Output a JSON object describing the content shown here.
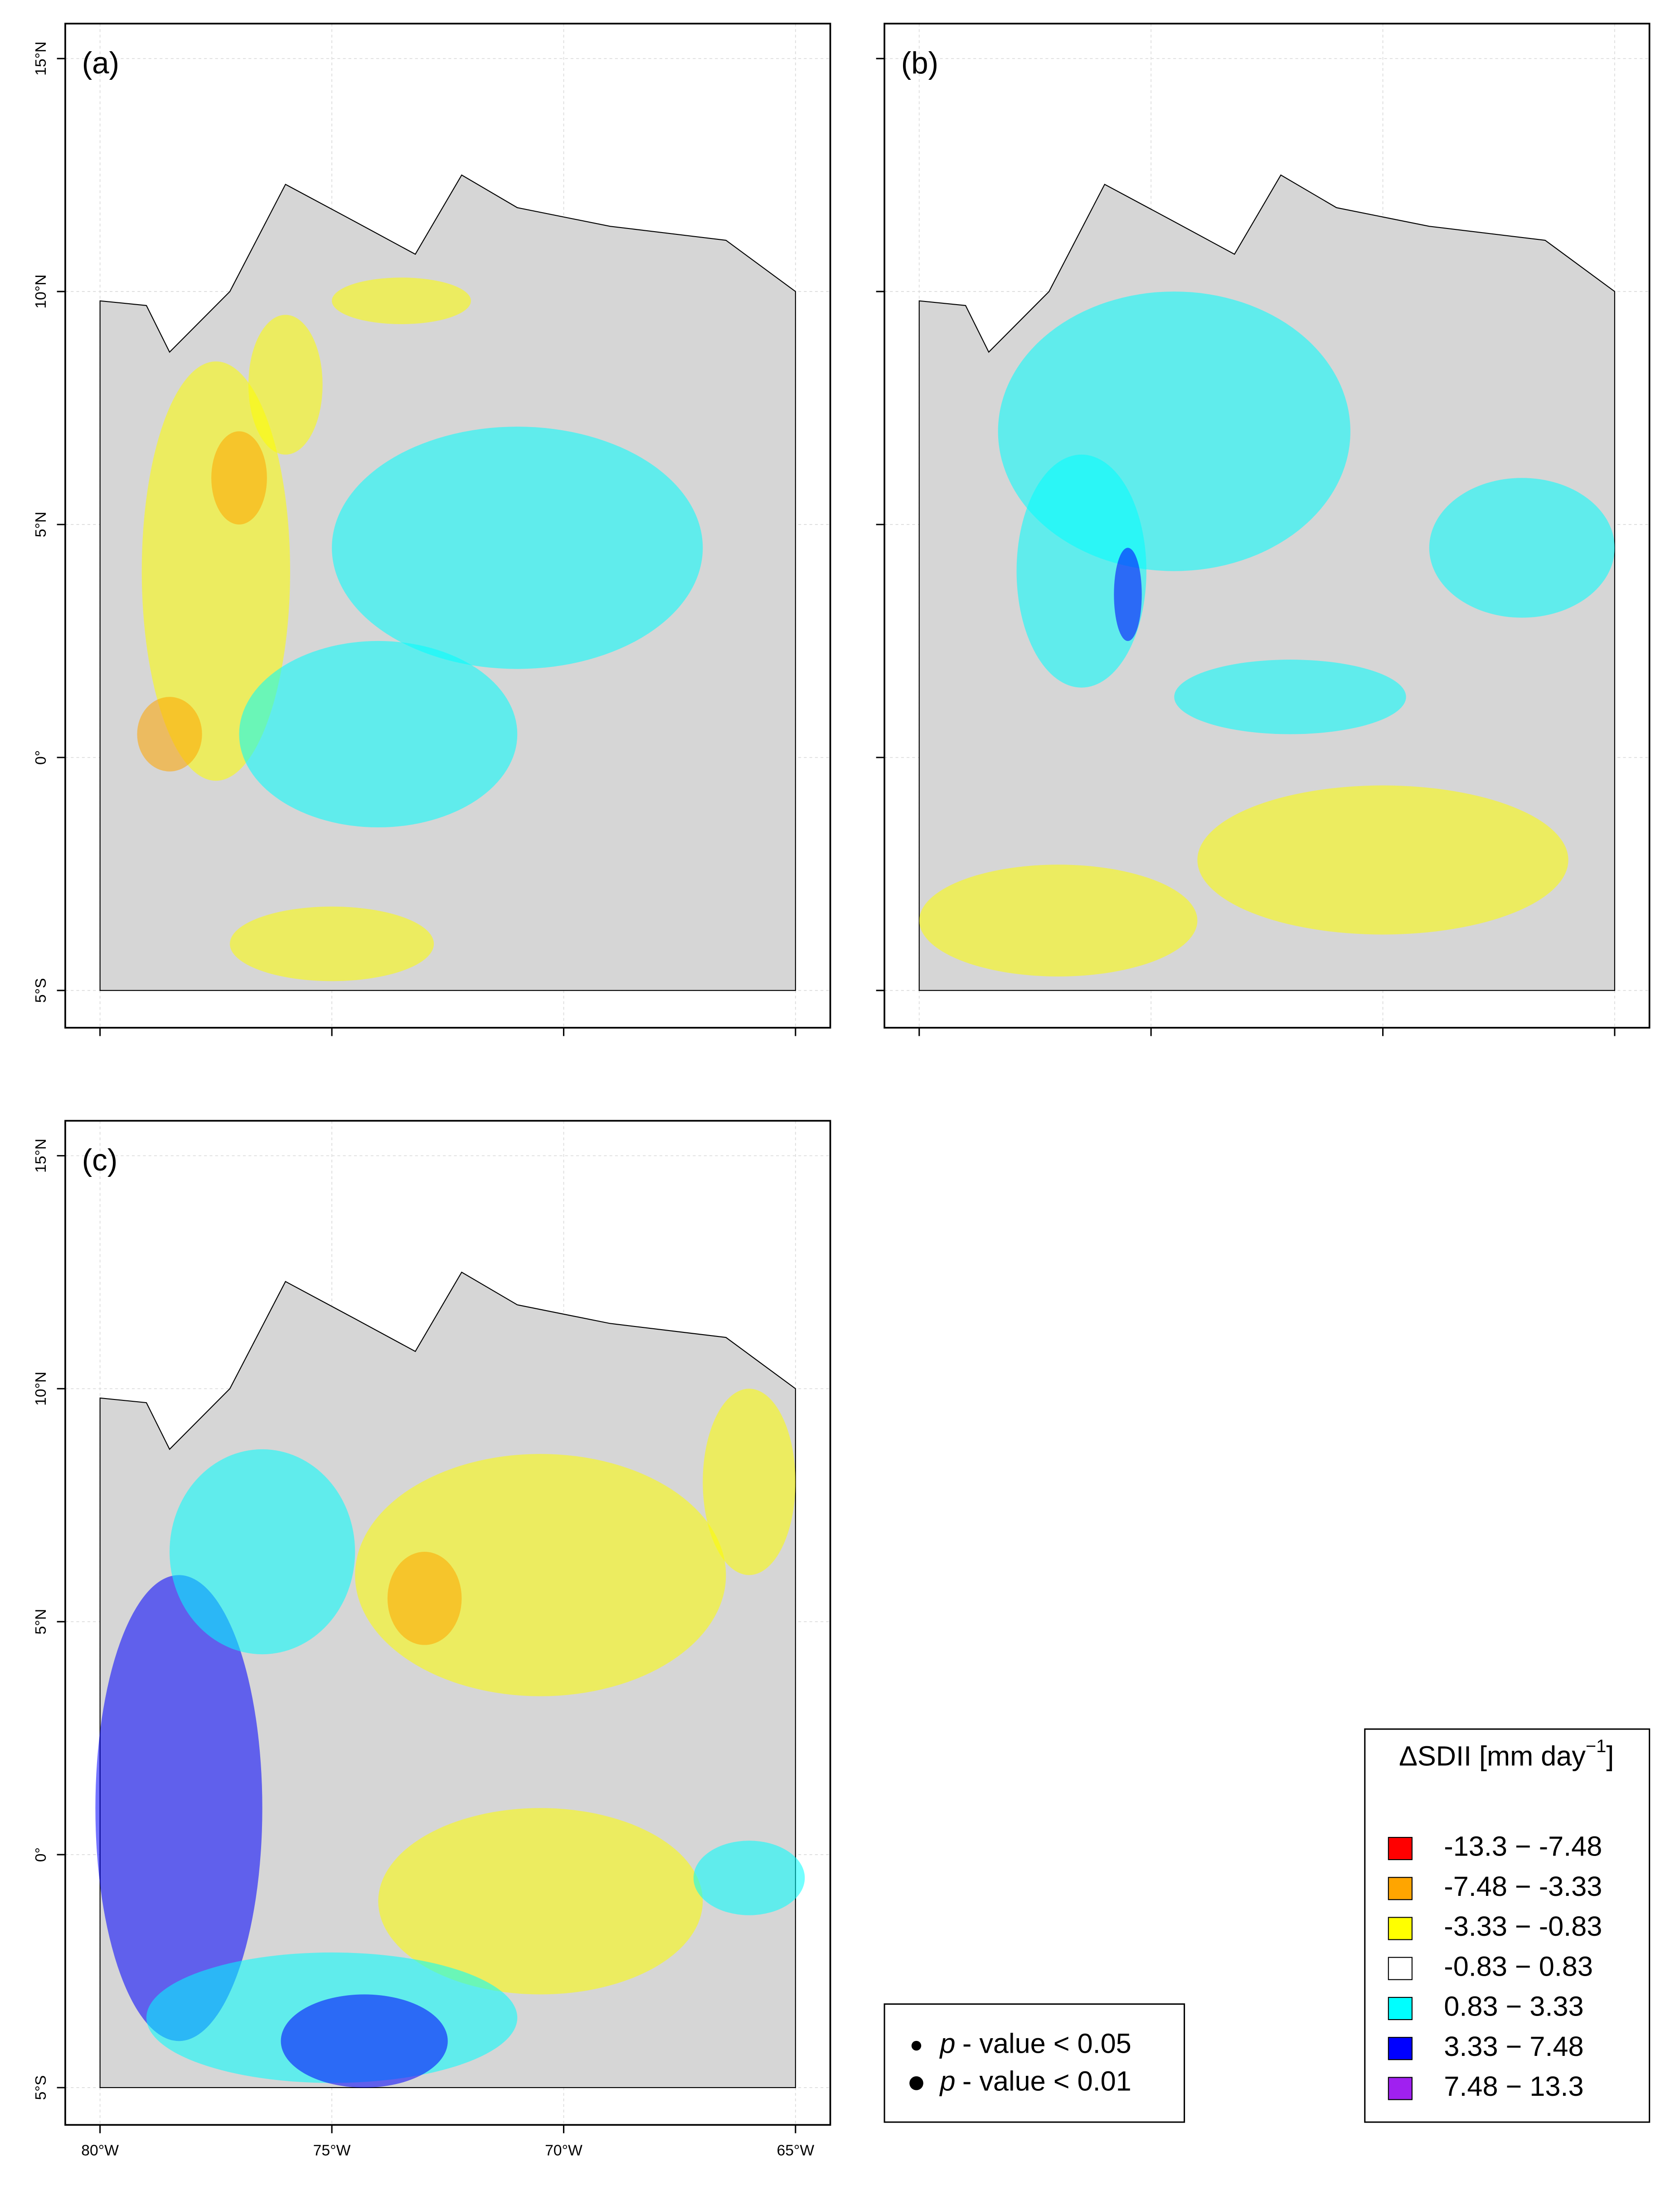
{
  "maps": {
    "type": "map",
    "panels": [
      {
        "label": "(a)"
      },
      {
        "label": "(b)"
      },
      {
        "label": "(c)"
      }
    ],
    "xlim": [
      -80.75,
      -64.25
    ],
    "ylim": [
      -5.8,
      15.75
    ],
    "xticks": [
      {
        "value": -80,
        "label": "80°W"
      },
      {
        "value": -75,
        "label": "75°W"
      },
      {
        "value": -70,
        "label": "70°W"
      },
      {
        "value": -65,
        "label": "65°W"
      }
    ],
    "yticks": [
      {
        "value": -5,
        "label": "5°S"
      },
      {
        "value": 0,
        "label": "0°"
      },
      {
        "value": 5,
        "label": "5°N"
      },
      {
        "value": 10,
        "label": "10°N"
      },
      {
        "value": 15,
        "label": "15°N"
      }
    ],
    "grid": true,
    "legend": {
      "title": {
        "main": "ΔSDII [mm day",
        "sup": "−1",
        "end": "]"
      },
      "position": "bottom-right",
      "items": [
        {
          "label": "-13.3 − -7.48",
          "color": "#ff0000"
        },
        {
          "label": "-7.48 − -3.33",
          "color": "#ffa500"
        },
        {
          "label": "-3.33 − -0.83",
          "color": "#ffff00"
        },
        {
          "label": "-0.83 − 0.83",
          "color": "#ffffff"
        },
        {
          "label": "0.83 − 3.33",
          "color": "#00ffff"
        },
        {
          "label": "3.33 − 7.48",
          "color": "#0000ff"
        },
        {
          "label": "7.48 − 13.3",
          "color": "#a020f0"
        }
      ]
    },
    "significance": [
      {
        "symbol": "p",
        "text": "- value < 0.05"
      },
      {
        "symbol": "p",
        "text": "- value < 0.01"
      }
    ]
  }
}
